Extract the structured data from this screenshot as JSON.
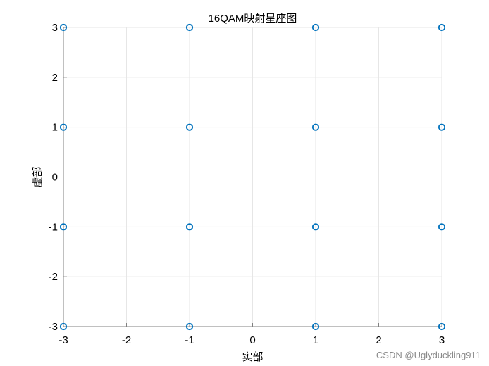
{
  "chart_data": {
    "type": "scatter",
    "title": "16QAM映射星座图",
    "xlabel": "实部",
    "ylabel": "虚部",
    "xlim": [
      -3,
      3
    ],
    "ylim": [
      -3,
      3
    ],
    "xticks": [
      "-3",
      "-2",
      "-1",
      "0",
      "1",
      "2",
      "3"
    ],
    "yticks": [
      "-3",
      "-2",
      "-1",
      "0",
      "1",
      "2",
      "3"
    ],
    "grid": true,
    "marker": "circle",
    "marker_color": "#0072BD",
    "series": [
      {
        "points": [
          {
            "x": -3,
            "y": 3
          },
          {
            "x": -1,
            "y": 3
          },
          {
            "x": 1,
            "y": 3
          },
          {
            "x": 3,
            "y": 3
          },
          {
            "x": -3,
            "y": 1
          },
          {
            "x": -1,
            "y": 1
          },
          {
            "x": 1,
            "y": 1
          },
          {
            "x": 3,
            "y": 1
          },
          {
            "x": -3,
            "y": -1
          },
          {
            "x": -1,
            "y": -1
          },
          {
            "x": 1,
            "y": -1
          },
          {
            "x": 3,
            "y": -1
          },
          {
            "x": -3,
            "y": -3
          },
          {
            "x": -1,
            "y": -3
          },
          {
            "x": 1,
            "y": -3
          },
          {
            "x": 3,
            "y": -3
          }
        ]
      }
    ]
  },
  "watermark": "CSDN @Uglyduckling911"
}
